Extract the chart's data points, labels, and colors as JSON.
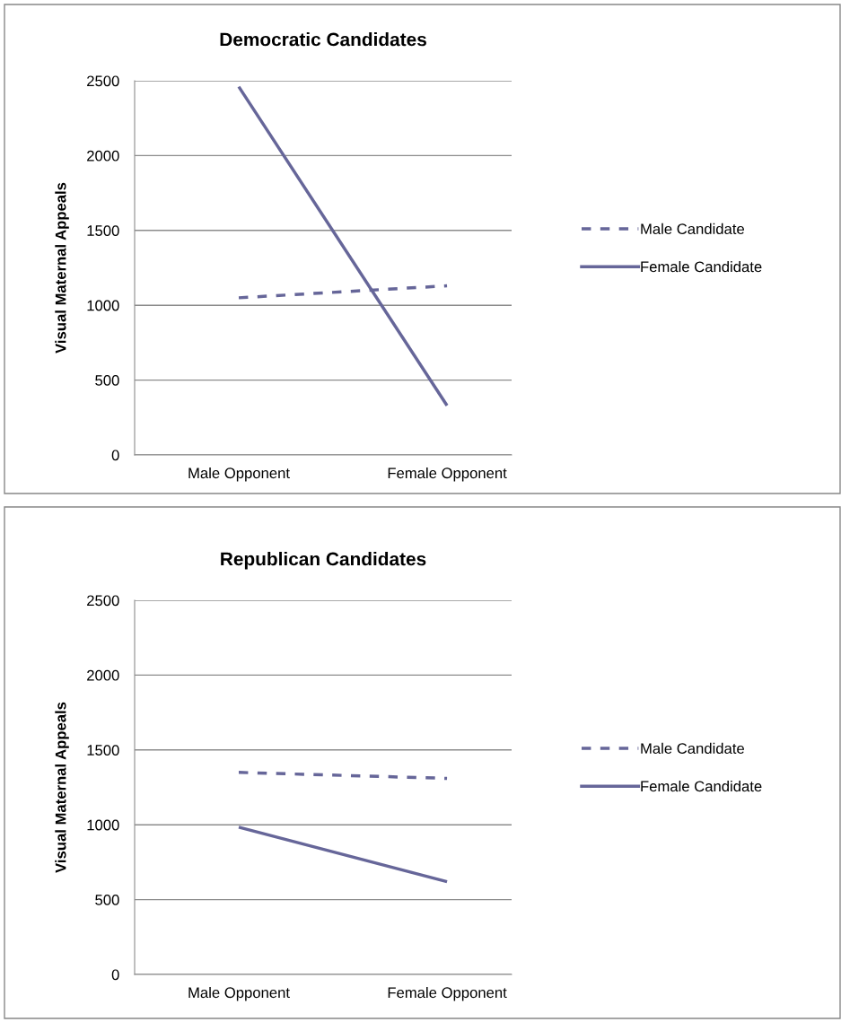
{
  "chart_data": [
    {
      "type": "line",
      "title": "Democratic Candidates",
      "ylabel": "Visual Maternal Appeals",
      "categories": [
        "Male Opponent",
        "Female Opponent"
      ],
      "ylim": [
        0,
        2500
      ],
      "yticks": [
        0,
        500,
        1000,
        1500,
        2000,
        2500
      ],
      "grid": "y",
      "legend": "right",
      "marker": "none",
      "series": [
        {
          "name": "Male Candidate",
          "color": "#666699",
          "line_style": "dashed",
          "values": [
            1050,
            1130
          ]
        },
        {
          "name": "Female Candidate",
          "color": "#666699",
          "line_style": "solid",
          "values": [
            2460,
            330
          ]
        }
      ]
    },
    {
      "type": "line",
      "title": "Republican Candidates",
      "ylabel": "Visual Maternal Appeals",
      "categories": [
        "Male Opponent",
        "Female Opponent"
      ],
      "ylim": [
        0,
        2500
      ],
      "yticks": [
        0,
        500,
        1000,
        1500,
        2000,
        2500
      ],
      "grid": "y",
      "legend": "right",
      "marker": "none",
      "series": [
        {
          "name": "Male Candidate",
          "color": "#666699",
          "line_style": "dashed",
          "values": [
            1350,
            1310
          ]
        },
        {
          "name": "Female Candidate",
          "color": "#666699",
          "line_style": "solid",
          "values": [
            984,
            620
          ]
        }
      ]
    }
  ]
}
